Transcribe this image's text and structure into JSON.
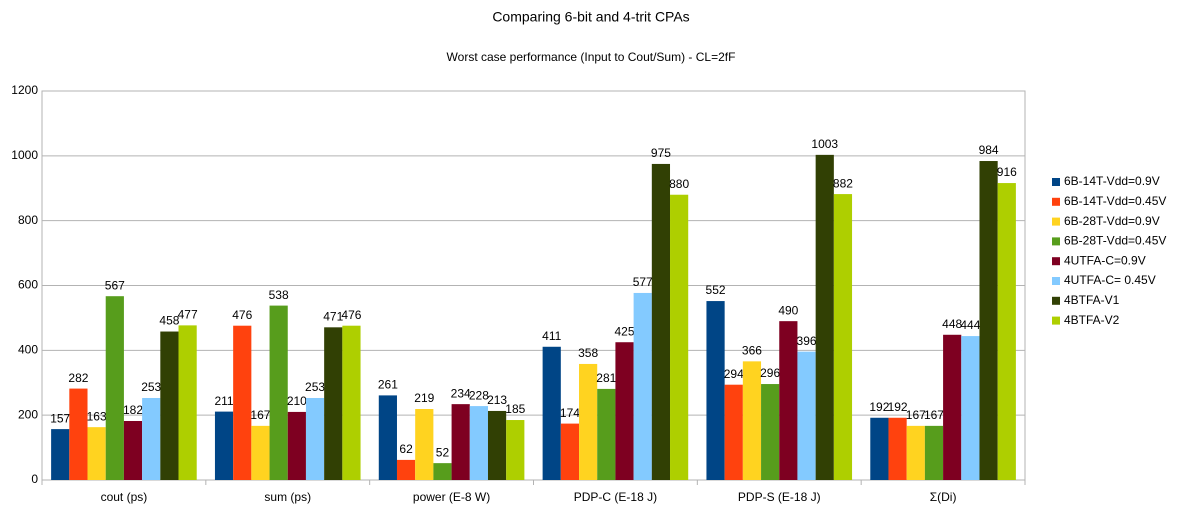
{
  "chart_data": {
    "type": "bar",
    "title": "Comparing 6-bit and 4-trit CPAs",
    "subtitle": "Worst case performance (Input to Cout/Sum) - CL=2fF",
    "categories": [
      "cout (ps)",
      "sum (ps)",
      "power (E-8 W)",
      "PDP-C (E-18 J)",
      "PDP-S (E-18 J)",
      "Σ(Di)"
    ],
    "series": [
      {
        "name": "6B-14T-Vdd=0.9V",
        "color": "#004586",
        "values": [
          157,
          211,
          261,
          411,
          552,
          192
        ]
      },
      {
        "name": "6B-14T-Vdd=0.45V",
        "color": "#ff420e",
        "values": [
          282,
          476,
          62,
          174,
          294,
          192
        ]
      },
      {
        "name": "6B-28T-Vdd=0.9V",
        "color": "#ffd320",
        "values": [
          163,
          167,
          219,
          358,
          366,
          167
        ]
      },
      {
        "name": "6B-28T-Vdd=0.45V",
        "color": "#579d1c",
        "values": [
          567,
          538,
          52,
          281,
          296,
          167
        ]
      },
      {
        "name": "4UTFA-C=0.9V",
        "color": "#7e0021",
        "values": [
          182,
          210,
          234,
          425,
          490,
          448
        ]
      },
      {
        "name": "4UTFA-C= 0.45V",
        "color": "#83caff",
        "values": [
          253,
          253,
          228,
          577,
          396,
          444
        ]
      },
      {
        "name": "4BTFA-V1",
        "color": "#314004",
        "values": [
          458,
          471,
          213,
          975,
          1003,
          984
        ]
      },
      {
        "name": "4BTFA-V2",
        "color": "#aecf00",
        "values": [
          477,
          476,
          185,
          880,
          882,
          916
        ]
      }
    ],
    "ylim": [
      0,
      1200
    ],
    "yticks": [
      0,
      200,
      400,
      600,
      800,
      1000,
      1200
    ],
    "grid": true,
    "legend": "right"
  }
}
